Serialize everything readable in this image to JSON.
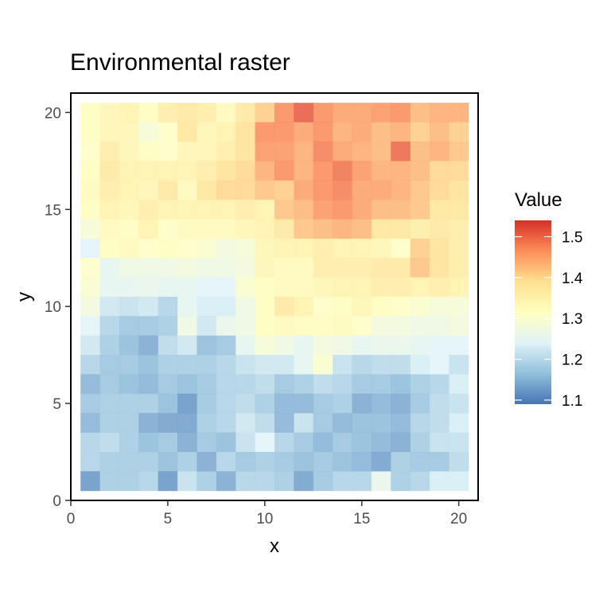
{
  "chart_data": {
    "type": "heatmap",
    "title": "Environmental raster",
    "xlabel": "x",
    "ylabel": "y",
    "xlim": [
      0,
      21
    ],
    "ylim": [
      0,
      21
    ],
    "x_ticks": [
      0,
      5,
      10,
      15,
      20
    ],
    "y_ticks": [
      0,
      5,
      10,
      15,
      20
    ],
    "grid": false,
    "legend": {
      "title": "Value",
      "position": "right",
      "ticks": [
        1.1,
        1.2,
        1.3,
        1.4,
        1.5
      ],
      "min": 1.09,
      "max": 1.54
    },
    "colors": {
      "scale": [
        "#4575B4",
        "#91BFDB",
        "#E0F3F8",
        "#FFFFBF",
        "#FEE090",
        "#FC8D59",
        "#D73027"
      ]
    },
    "cell_x": [
      1,
      2,
      3,
      4,
      5,
      6,
      7,
      8,
      9,
      10,
      11,
      12,
      13,
      14,
      15,
      16,
      17,
      18,
      19,
      20
    ],
    "cell_y": [
      20,
      19,
      18,
      17,
      16,
      15,
      14,
      13,
      12,
      11,
      10,
      9,
      8,
      7,
      6,
      5,
      4,
      3,
      2,
      1
    ],
    "values": [
      [
        1.32,
        1.34,
        1.35,
        1.32,
        1.36,
        1.37,
        1.36,
        1.33,
        1.37,
        1.41,
        1.47,
        1.51,
        1.47,
        1.45,
        1.45,
        1.46,
        1.47,
        1.43,
        1.44,
        1.44
      ],
      [
        1.32,
        1.34,
        1.34,
        1.29,
        1.31,
        1.38,
        1.34,
        1.35,
        1.39,
        1.47,
        1.47,
        1.45,
        1.47,
        1.44,
        1.45,
        1.43,
        1.44,
        1.41,
        1.43,
        1.41
      ],
      [
        1.31,
        1.36,
        1.34,
        1.32,
        1.31,
        1.34,
        1.34,
        1.36,
        1.39,
        1.46,
        1.46,
        1.44,
        1.48,
        1.45,
        1.44,
        1.43,
        1.5,
        1.43,
        1.44,
        1.42
      ],
      [
        1.32,
        1.37,
        1.35,
        1.35,
        1.35,
        1.35,
        1.36,
        1.39,
        1.4,
        1.44,
        1.47,
        1.44,
        1.47,
        1.49,
        1.46,
        1.44,
        1.44,
        1.43,
        1.4,
        1.4
      ],
      [
        1.33,
        1.36,
        1.35,
        1.34,
        1.37,
        1.33,
        1.38,
        1.4,
        1.4,
        1.42,
        1.41,
        1.45,
        1.47,
        1.48,
        1.45,
        1.45,
        1.44,
        1.42,
        1.4,
        1.39
      ],
      [
        1.32,
        1.35,
        1.34,
        1.36,
        1.35,
        1.35,
        1.35,
        1.35,
        1.36,
        1.35,
        1.42,
        1.43,
        1.46,
        1.47,
        1.45,
        1.43,
        1.43,
        1.42,
        1.38,
        1.38
      ],
      [
        1.29,
        1.33,
        1.32,
        1.35,
        1.31,
        1.33,
        1.33,
        1.33,
        1.34,
        1.35,
        1.37,
        1.42,
        1.43,
        1.44,
        1.43,
        1.38,
        1.38,
        1.36,
        1.37,
        1.36
      ],
      [
        1.24,
        1.32,
        1.33,
        1.31,
        1.32,
        1.31,
        1.3,
        1.28,
        1.29,
        1.34,
        1.35,
        1.35,
        1.36,
        1.35,
        1.35,
        1.34,
        1.31,
        1.41,
        1.39,
        1.36
      ],
      [
        1.31,
        1.25,
        1.27,
        1.27,
        1.27,
        1.28,
        1.27,
        1.27,
        1.28,
        1.34,
        1.33,
        1.33,
        1.36,
        1.36,
        1.36,
        1.37,
        1.37,
        1.42,
        1.39,
        1.36
      ],
      [
        1.3,
        1.25,
        1.25,
        1.26,
        1.25,
        1.25,
        1.24,
        1.24,
        1.3,
        1.32,
        1.33,
        1.33,
        1.34,
        1.35,
        1.35,
        1.36,
        1.36,
        1.35,
        1.36,
        1.35
      ],
      [
        1.28,
        1.22,
        1.21,
        1.22,
        1.19,
        1.25,
        1.23,
        1.23,
        1.27,
        1.32,
        1.37,
        1.35,
        1.31,
        1.32,
        1.34,
        1.32,
        1.31,
        1.3,
        1.29,
        1.29
      ],
      [
        1.24,
        1.19,
        1.17,
        1.17,
        1.18,
        1.27,
        1.22,
        1.26,
        1.27,
        1.32,
        1.33,
        1.32,
        1.32,
        1.33,
        1.31,
        1.28,
        1.28,
        1.27,
        1.27,
        1.28
      ],
      [
        1.22,
        1.18,
        1.16,
        1.14,
        1.2,
        1.22,
        1.16,
        1.17,
        1.25,
        1.29,
        1.27,
        1.25,
        1.28,
        1.27,
        1.25,
        1.26,
        1.26,
        1.25,
        1.24,
        1.24
      ],
      [
        1.19,
        1.17,
        1.17,
        1.16,
        1.18,
        1.18,
        1.18,
        1.19,
        1.21,
        1.22,
        1.22,
        1.25,
        1.3,
        1.21,
        1.19,
        1.2,
        1.2,
        1.23,
        1.24,
        1.21
      ],
      [
        1.15,
        1.17,
        1.16,
        1.15,
        1.17,
        1.16,
        1.17,
        1.19,
        1.19,
        1.2,
        1.17,
        1.18,
        1.2,
        1.19,
        1.17,
        1.17,
        1.16,
        1.18,
        1.19,
        1.23
      ],
      [
        1.17,
        1.18,
        1.18,
        1.18,
        1.16,
        1.12,
        1.17,
        1.19,
        1.2,
        1.18,
        1.15,
        1.15,
        1.17,
        1.18,
        1.14,
        1.15,
        1.14,
        1.17,
        1.2,
        1.21
      ],
      [
        1.15,
        1.18,
        1.18,
        1.14,
        1.13,
        1.13,
        1.18,
        1.19,
        1.22,
        1.2,
        1.15,
        1.21,
        1.17,
        1.15,
        1.16,
        1.16,
        1.15,
        1.19,
        1.2,
        1.23
      ],
      [
        1.19,
        1.2,
        1.18,
        1.16,
        1.17,
        1.14,
        1.17,
        1.16,
        1.21,
        1.24,
        1.19,
        1.17,
        1.15,
        1.17,
        1.16,
        1.15,
        1.14,
        1.18,
        1.21,
        1.21
      ],
      [
        1.19,
        1.18,
        1.18,
        1.18,
        1.16,
        1.18,
        1.14,
        1.19,
        1.17,
        1.18,
        1.17,
        1.16,
        1.17,
        1.16,
        1.15,
        1.13,
        1.18,
        1.17,
        1.17,
        1.2
      ],
      [
        1.12,
        1.18,
        1.18,
        1.19,
        1.12,
        1.21,
        1.18,
        1.14,
        1.19,
        1.19,
        1.18,
        1.13,
        1.17,
        1.19,
        1.19,
        1.26,
        1.18,
        1.19,
        1.23,
        1.23
      ]
    ]
  }
}
